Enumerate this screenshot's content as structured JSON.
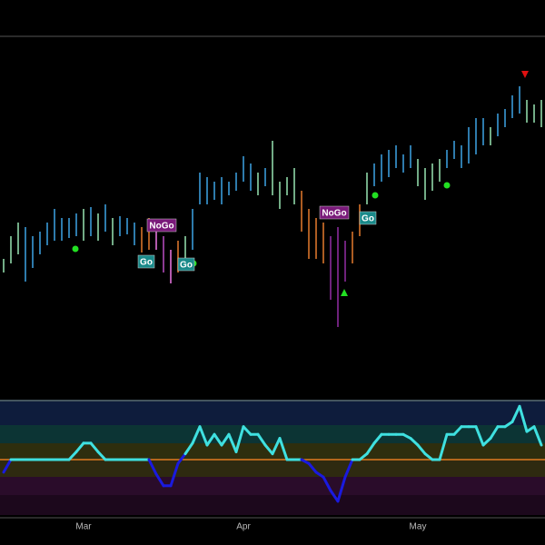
{
  "chart_data": {
    "type": "ohlc",
    "categories": [
      null,
      null,
      null,
      null,
      null,
      null,
      null,
      null,
      null,
      null,
      null,
      "Mar",
      null,
      null,
      null,
      null,
      null,
      null,
      null,
      null,
      null,
      null,
      null,
      null,
      null,
      null,
      null,
      null,
      null,
      null,
      null,
      null,
      null,
      "Apr",
      null,
      null,
      null,
      null,
      null,
      null,
      null,
      null,
      null,
      null,
      null,
      null,
      null,
      null,
      null,
      null,
      null,
      null,
      null,
      null,
      null,
      null,
      null,
      "May",
      null,
      null,
      null,
      null,
      null,
      null,
      null,
      null,
      null,
      null,
      null,
      null,
      null,
      null,
      null,
      null,
      null
    ],
    "high": [
      155,
      180,
      195,
      190,
      180,
      185,
      195,
      210,
      200,
      200,
      205,
      210,
      212,
      205,
      215,
      200,
      202,
      200,
      195,
      190,
      200,
      195,
      180,
      165,
      175,
      180,
      210,
      250,
      245,
      240,
      245,
      240,
      250,
      268,
      260,
      250,
      255,
      285,
      240,
      245,
      255,
      230,
      210,
      200,
      195,
      180,
      190,
      175,
      185,
      215,
      250,
      260,
      270,
      275,
      280,
      270,
      280,
      265,
      255,
      260,
      265,
      275,
      285,
      280,
      300,
      310,
      310,
      300,
      315,
      320,
      335,
      345,
      330,
      325,
      330
    ],
    "low": [
      140,
      150,
      160,
      130,
      145,
      160,
      170,
      175,
      175,
      178,
      180,
      175,
      180,
      175,
      185,
      170,
      180,
      182,
      170,
      162,
      165,
      165,
      140,
      128,
      140,
      150,
      165,
      215,
      215,
      220,
      215,
      225,
      230,
      240,
      230,
      225,
      235,
      225,
      210,
      225,
      215,
      185,
      155,
      155,
      150,
      110,
      80,
      130,
      150,
      180,
      215,
      235,
      240,
      245,
      255,
      250,
      255,
      235,
      220,
      230,
      240,
      255,
      265,
      255,
      260,
      270,
      280,
      280,
      290,
      300,
      310,
      315,
      305,
      305,
      300
    ],
    "colors": [
      "#8fd8a8",
      "#8fd8a8",
      "#8fd8a8",
      "#3a9ad8",
      "#3a9ad8",
      "#3a9ad8",
      "#3a9ad8",
      "#3a9ad8",
      "#3a9ad8",
      "#3a9ad8",
      "#3a9ad8",
      "#8fd8a8",
      "#3a9ad8",
      "#8fd8a8",
      "#3a9ad8",
      "#8fd8a8",
      "#3a9ad8",
      "#3a9ad8",
      "#3a9ad8",
      "#d8732a",
      "#d8732a",
      "#e070d8",
      "#b048b8",
      "#e070d8",
      "#d8732a",
      "#8fd8a8",
      "#3a9ad8",
      "#3a9ad8",
      "#3a9ad8",
      "#3a9ad8",
      "#3a9ad8",
      "#3a9ad8",
      "#3a9ad8",
      "#3a9ad8",
      "#3a9ad8",
      "#8fd8a8",
      "#3a9ad8",
      "#8fd8a8",
      "#8fd8a8",
      "#8fd8a8",
      "#8fd8a8",
      "#d8732a",
      "#d8732a",
      "#d8732a",
      "#d8732a",
      "#8a2a9a",
      "#8a2a9a",
      "#8a2a9a",
      "#d8732a",
      "#d8732a",
      "#8fd8a8",
      "#3a9ad8",
      "#3a9ad8",
      "#3a9ad8",
      "#3a9ad8",
      "#3a9ad8",
      "#3a9ad8",
      "#8fd8a8",
      "#8fd8a8",
      "#8fd8a8",
      "#8fd8a8",
      "#3a9ad8",
      "#3a9ad8",
      "#3a9ad8",
      "#3a9ad8",
      "#3a9ad8",
      "#3a9ad8",
      "#8fd8a8",
      "#3a9ad8",
      "#3a9ad8",
      "#3a9ad8",
      "#3a9ad8",
      "#8fd8a8",
      "#8fd8a8",
      "#8fd8a8"
    ],
    "ylim": [
      0,
      400
    ],
    "annotations": [
      "NoGo",
      "Go",
      "Go",
      "NoGo",
      "Go"
    ],
    "oscillator": {
      "type": "line",
      "color": "#3fe0e0",
      "negative_color": "#1a1adf",
      "ylim": [
        -6,
        6
      ],
      "values": [
        -1.3,
        0,
        0,
        0,
        0,
        0,
        0,
        0,
        0,
        0,
        0.8,
        1.7,
        1.7,
        0.8,
        0,
        0,
        0,
        0,
        0,
        0,
        0,
        -1.5,
        -2.7,
        -2.7,
        -0.4,
        0.6,
        1.7,
        3.4,
        1.5,
        2.6,
        1.5,
        2.6,
        0.8,
        3.4,
        2.6,
        2.6,
        1.5,
        0.6,
        2.2,
        0,
        0,
        0,
        -0.4,
        -1.3,
        -1.8,
        -3.2,
        -4.3,
        -1.8,
        0,
        0,
        0.6,
        1.7,
        2.6,
        2.6,
        2.6,
        2.6,
        2.2,
        1.5,
        0.6,
        0,
        0,
        2.6,
        2.6,
        3.4,
        3.4,
        3.4,
        1.5,
        2.2,
        3.4,
        3.4,
        3.9,
        5.5,
        2.9,
        3.4,
        1.5
      ]
    }
  }
}
